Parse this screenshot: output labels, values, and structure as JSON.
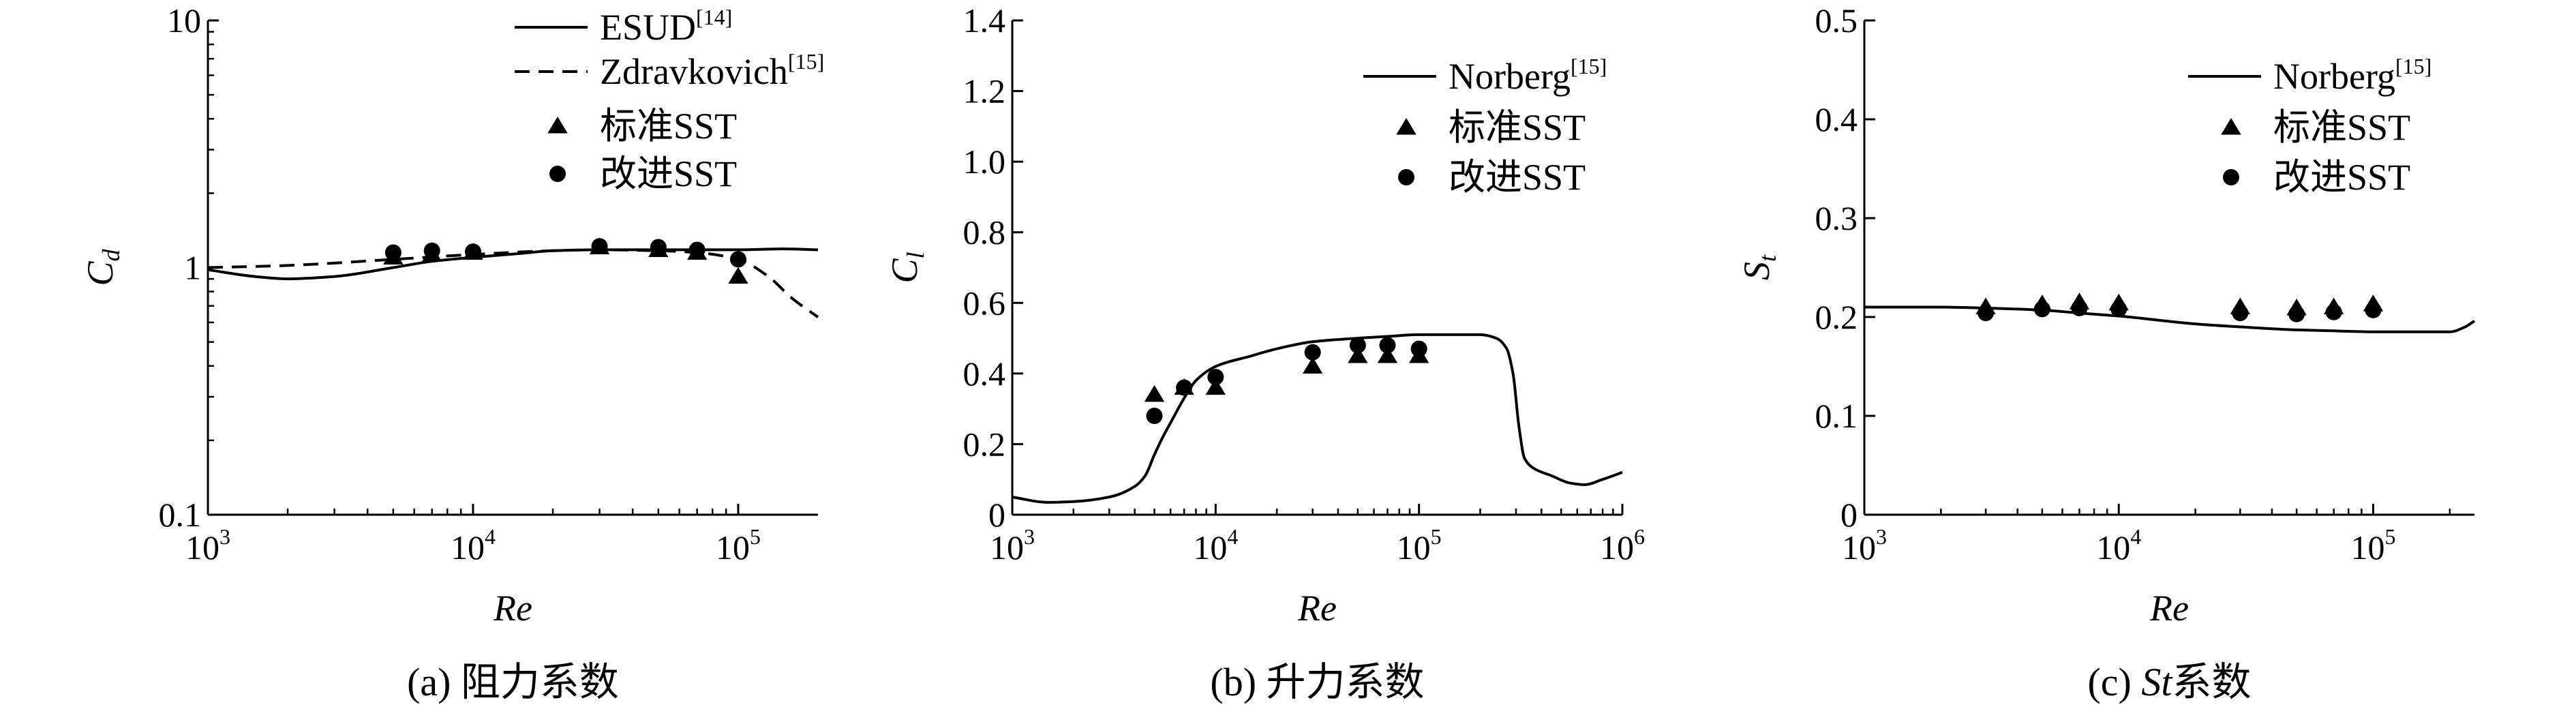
{
  "chart_data": [
    {
      "type": "line",
      "caption": "(a) 阻力系数",
      "xlabel": "Re",
      "ylabel_base": "C",
      "ylabel_sub": "d",
      "xscale": "log",
      "yscale": "log",
      "xlim": [
        1000,
        200000
      ],
      "ylim": [
        0.1,
        10
      ],
      "x_ticks": [
        {
          "value": 1000,
          "base": "10",
          "exp": "3"
        },
        {
          "value": 10000,
          "base": "10",
          "exp": "4"
        },
        {
          "value": 100000,
          "base": "10",
          "exp": "5"
        }
      ],
      "y_ticks": [
        {
          "value": 0.1,
          "label": "0.1"
        },
        {
          "value": 1,
          "label": "1"
        },
        {
          "value": 10,
          "label": "10"
        }
      ],
      "legend_position": "top-right",
      "series": [
        {
          "name": "ESUD",
          "ref": "[14]",
          "style": "line",
          "x": [
            1000,
            1500,
            2000,
            3000,
            5000,
            7000,
            10000,
            15000,
            20000,
            30000,
            50000,
            70000,
            100000,
            150000,
            200000
          ],
          "y": [
            0.98,
            0.92,
            0.9,
            0.92,
            1.0,
            1.06,
            1.1,
            1.14,
            1.17,
            1.18,
            1.18,
            1.18,
            1.18,
            1.19,
            1.18
          ]
        },
        {
          "name": "Zdravkovich",
          "ref": "[15]",
          "style": "dashed",
          "x": [
            1000,
            2000,
            5000,
            10000,
            20000,
            30000,
            50000,
            70000,
            100000,
            130000,
            160000,
            200000
          ],
          "y": [
            1.0,
            1.02,
            1.08,
            1.13,
            1.17,
            1.18,
            1.17,
            1.15,
            1.08,
            0.92,
            0.75,
            0.63
          ]
        },
        {
          "name": "标准SST",
          "style": "triangle",
          "x": [
            5000,
            7000,
            10000,
            30000,
            50000,
            70000,
            100000
          ],
          "y": [
            1.1,
            1.13,
            1.15,
            1.21,
            1.18,
            1.15,
            0.92
          ]
        },
        {
          "name": "改进SST",
          "style": "circle",
          "x": [
            5000,
            7000,
            10000,
            30000,
            50000,
            70000,
            100000
          ],
          "y": [
            1.15,
            1.17,
            1.16,
            1.22,
            1.21,
            1.18,
            1.08
          ]
        }
      ]
    },
    {
      "type": "line",
      "caption": "(b) 升力系数",
      "xlabel": "Re",
      "ylabel_base": "C",
      "ylabel_sub": "l",
      "xscale": "log",
      "yscale": "linear",
      "xlim": [
        1000,
        1000000
      ],
      "ylim": [
        0,
        1.4
      ],
      "x_ticks": [
        {
          "value": 1000,
          "base": "10",
          "exp": "3"
        },
        {
          "value": 10000,
          "base": "10",
          "exp": "4"
        },
        {
          "value": 100000,
          "base": "10",
          "exp": "5"
        },
        {
          "value": 1000000,
          "base": "10",
          "exp": "6"
        }
      ],
      "y_ticks": [
        {
          "value": 0,
          "label": "0"
        },
        {
          "value": 0.2,
          "label": "0.2"
        },
        {
          "value": 0.4,
          "label": "0.4"
        },
        {
          "value": 0.6,
          "label": "0.6"
        },
        {
          "value": 0.8,
          "label": "0.8"
        },
        {
          "value": 1.0,
          "label": "1.0"
        },
        {
          "value": 1.2,
          "label": "1.2"
        },
        {
          "value": 1.4,
          "label": "1.4"
        }
      ],
      "legend_position": "top-right",
      "series": [
        {
          "name": "Norberg",
          "ref": "[15]",
          "style": "line",
          "x": [
            1000,
            1500,
            2000,
            3000,
            4000,
            4500,
            5000,
            5500,
            6000,
            7000,
            8000,
            10000,
            15000,
            20000,
            30000,
            50000,
            70000,
            100000,
            150000,
            200000,
            240000,
            270000,
            290000,
            310000,
            330000,
            370000,
            450000,
            550000,
            650000,
            800000,
            1000000
          ],
          "y": [
            0.05,
            0.035,
            0.037,
            0.05,
            0.08,
            0.11,
            0.17,
            0.22,
            0.26,
            0.33,
            0.38,
            0.42,
            0.45,
            0.47,
            0.49,
            0.5,
            0.505,
            0.51,
            0.51,
            0.51,
            0.5,
            0.47,
            0.4,
            0.25,
            0.16,
            0.13,
            0.11,
            0.09,
            0.085,
            0.1,
            0.12
          ]
        },
        {
          "name": "标准SST",
          "style": "triangle",
          "x": [
            5000,
            7000,
            10000,
            30000,
            50000,
            70000,
            100000
          ],
          "y": [
            0.34,
            0.36,
            0.36,
            0.42,
            0.45,
            0.45,
            0.45
          ]
        },
        {
          "name": "改进SST",
          "style": "circle",
          "x": [
            5000,
            7000,
            10000,
            30000,
            50000,
            70000,
            100000
          ],
          "y": [
            0.28,
            0.36,
            0.39,
            0.46,
            0.48,
            0.48,
            0.47
          ]
        }
      ]
    },
    {
      "type": "line",
      "caption_prefix": "(c) ",
      "caption_italic": "St",
      "caption_suffix": "系数",
      "xlabel": "Re",
      "ylabel_base": "S",
      "ylabel_sub": "t",
      "xscale": "log",
      "yscale": "linear",
      "xlim": [
        1000,
        250000
      ],
      "ylim": [
        0,
        0.5
      ],
      "x_ticks": [
        {
          "value": 1000,
          "base": "10",
          "exp": "3"
        },
        {
          "value": 10000,
          "base": "10",
          "exp": "4"
        },
        {
          "value": 100000,
          "base": "10",
          "exp": "5"
        }
      ],
      "y_ticks": [
        {
          "value": 0,
          "label": "0"
        },
        {
          "value": 0.1,
          "label": "0.1"
        },
        {
          "value": 0.2,
          "label": "0.2"
        },
        {
          "value": 0.3,
          "label": "0.3"
        },
        {
          "value": 0.4,
          "label": "0.4"
        },
        {
          "value": 0.5,
          "label": "0.5"
        }
      ],
      "legend_position": "top-right",
      "series": [
        {
          "name": "Norberg",
          "ref": "[15]",
          "style": "line",
          "x": [
            1000,
            2000,
            3000,
            5000,
            7000,
            10000,
            20000,
            30000,
            50000,
            70000,
            100000,
            150000,
            200000,
            230000,
            250000
          ],
          "y": [
            0.21,
            0.21,
            0.209,
            0.207,
            0.204,
            0.201,
            0.193,
            0.19,
            0.187,
            0.186,
            0.185,
            0.185,
            0.185,
            0.19,
            0.196
          ]
        },
        {
          "name": "标准SST",
          "style": "triangle",
          "x": [
            3000,
            5000,
            7000,
            10000,
            30000,
            50000,
            70000,
            100000
          ],
          "y": [
            0.21,
            0.213,
            0.215,
            0.214,
            0.21,
            0.209,
            0.21,
            0.213
          ]
        },
        {
          "name": "改进SST",
          "style": "circle",
          "x": [
            3000,
            5000,
            7000,
            10000,
            30000,
            50000,
            70000,
            100000
          ],
          "y": [
            0.204,
            0.208,
            0.209,
            0.208,
            0.204,
            0.203,
            0.205,
            0.207
          ]
        }
      ]
    }
  ]
}
